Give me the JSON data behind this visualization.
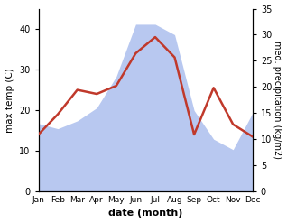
{
  "months": [
    "Jan",
    "Feb",
    "Mar",
    "Apr",
    "May",
    "Jun",
    "Jul",
    "Aug",
    "Sep",
    "Oct",
    "Nov",
    "Dec"
  ],
  "month_positions": [
    1,
    2,
    3,
    4,
    5,
    6,
    7,
    8,
    9,
    10,
    11,
    12
  ],
  "temperature": [
    14.0,
    19.0,
    25.0,
    24.0,
    26.0,
    34.0,
    38.0,
    33.0,
    14.0,
    25.5,
    16.5,
    13.5
  ],
  "precipitation": [
    13.0,
    12.0,
    13.5,
    16.0,
    22.0,
    32.0,
    32.0,
    30.0,
    15.5,
    10.0,
    8.0,
    15.0
  ],
  "temp_color": "#c0392b",
  "precip_color": "#b8c8f0",
  "temp_ylim": [
    0,
    45
  ],
  "precip_ylim": [
    0,
    35
  ],
  "temp_yticks": [
    0,
    10,
    20,
    30,
    40
  ],
  "precip_yticks": [
    0,
    5,
    10,
    15,
    20,
    25,
    30,
    35
  ],
  "ylabel_left": "max temp (C)",
  "ylabel_right": "med. precipitation (kg/m2)",
  "xlabel": "date (month)",
  "background_color": "#ffffff",
  "fig_width": 3.18,
  "fig_height": 2.47,
  "dpi": 100
}
